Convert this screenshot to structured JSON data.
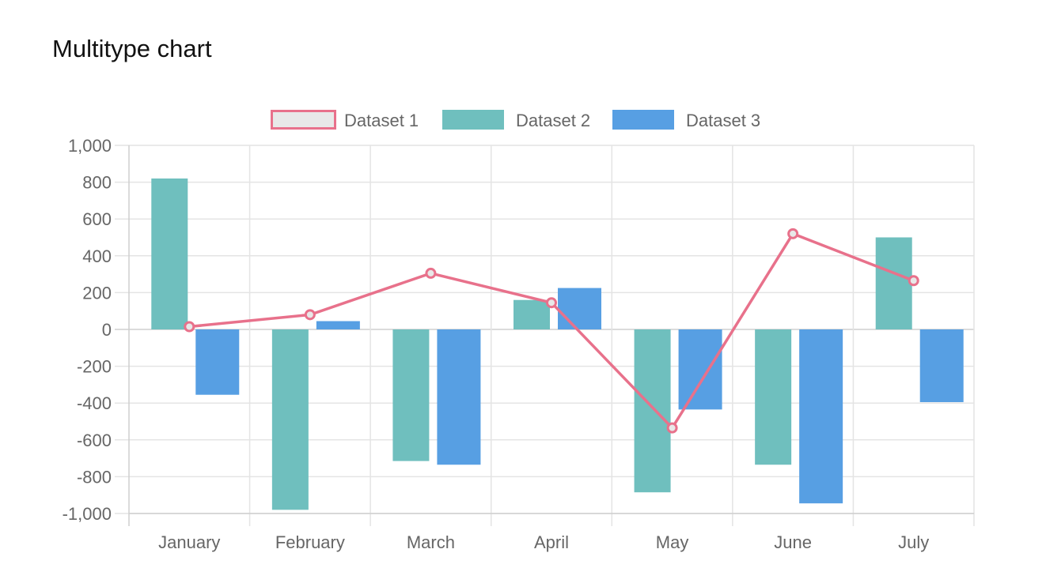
{
  "page": {
    "title": "Multitype chart"
  },
  "chart_data": {
    "type": "bar",
    "categories": [
      "January",
      "February",
      "March",
      "April",
      "May",
      "June",
      "July"
    ],
    "ylim": [
      -1000,
      1000
    ],
    "ytick_step": 200,
    "yticks": [
      "1,000",
      "800",
      "600",
      "400",
      "200",
      "0",
      "-200",
      "-400",
      "-600",
      "-800",
      "-1,000"
    ],
    "grid": true,
    "legend_position": "top",
    "series": [
      {
        "name": "Dataset 1",
        "type": "line",
        "color": "#e8718b",
        "fill": "#e8e8e8",
        "values": [
          15,
          80,
          305,
          145,
          -535,
          520,
          265
        ]
      },
      {
        "name": "Dataset 2",
        "type": "bar",
        "color": "#6fbfbe",
        "values": [
          820,
          -980,
          -715,
          160,
          -885,
          -735,
          500
        ]
      },
      {
        "name": "Dataset 3",
        "type": "bar",
        "color": "#579fe3",
        "values": [
          -355,
          45,
          -735,
          225,
          -435,
          -945,
          -395
        ]
      }
    ]
  }
}
